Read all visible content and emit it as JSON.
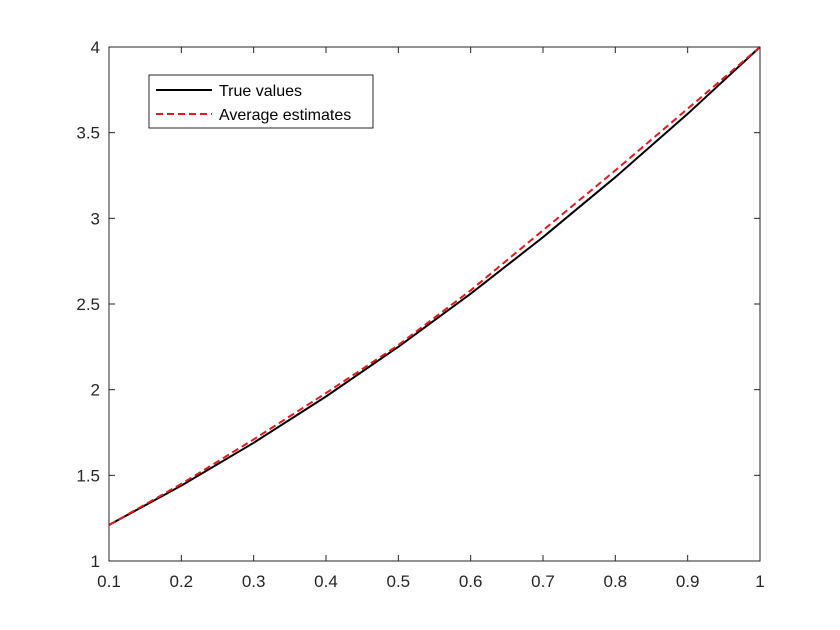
{
  "chart_data": {
    "type": "line",
    "title": "",
    "xlabel": "",
    "ylabel": "",
    "xlim": [
      0.1,
      1
    ],
    "ylim": [
      1,
      4
    ],
    "xticks": [
      0.1,
      0.2,
      0.3,
      0.4,
      0.5,
      0.6,
      0.7,
      0.8,
      0.9,
      1
    ],
    "xtick_labels": [
      "0.1",
      "0.2",
      "0.3",
      "0.4",
      "0.5",
      "0.6",
      "0.7",
      "0.8",
      "0.9",
      "1"
    ],
    "yticks": [
      1,
      1.5,
      2,
      2.5,
      3,
      3.5,
      4
    ],
    "ytick_labels": [
      "1",
      "1.5",
      "2",
      "2.5",
      "3",
      "3.5",
      "4"
    ],
    "grid": false,
    "legend_position": "top-left",
    "x": [
      0.1,
      0.2,
      0.3,
      0.4,
      0.5,
      0.6,
      0.7,
      0.8,
      0.9,
      1
    ],
    "series": [
      {
        "name": "True values",
        "color": "#000000",
        "style": "solid",
        "values": [
          1.21,
          1.44,
          1.69,
          1.96,
          2.25,
          2.56,
          2.89,
          3.24,
          3.61,
          4.0
        ]
      },
      {
        "name": "Average estimates",
        "color": "#e6191e",
        "style": "dashed",
        "values": [
          1.21,
          1.45,
          1.71,
          1.98,
          2.26,
          2.58,
          2.93,
          3.28,
          3.64,
          4.0
        ]
      }
    ]
  }
}
